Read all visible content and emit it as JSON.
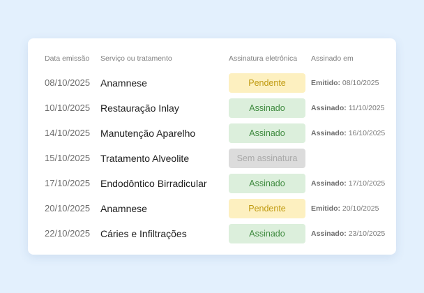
{
  "table": {
    "headers": {
      "date": "Data emissão",
      "service": "Serviço ou tratamento",
      "signature": "Assinatura eletrônica",
      "signed_at": "Assinado em"
    },
    "status_styles": {
      "Pendente": {
        "bg": "#fdf0c0",
        "fg": "#c09a10"
      },
      "Assinado": {
        "bg": "#dcefdc",
        "fg": "#3e8a3e"
      },
      "Sem assinatura": {
        "bg": "#dcdcdc",
        "fg": "#a8a8a8"
      }
    },
    "rows": [
      {
        "date": "08/10/2025",
        "service": "Anamnese",
        "status": "Pendente",
        "at_label": "Emitido:",
        "at_date": "08/10/2025"
      },
      {
        "date": "10/10/2025",
        "service": "Restauração Inlay",
        "status": "Assinado",
        "at_label": "Assinado:",
        "at_date": "11/10/2025"
      },
      {
        "date": "14/10/2025",
        "service": "Manutenção Aparelho",
        "status": "Assinado",
        "at_label": "Assinado:",
        "at_date": "16/10/2025"
      },
      {
        "date": "15/10/2025",
        "service": "Tratamento Alveolite",
        "status": "Sem assinatura",
        "at_label": "",
        "at_date": ""
      },
      {
        "date": "17/10/2025",
        "service": "Endodôntico Birradicular",
        "status": "Assinado",
        "at_label": "Assinado:",
        "at_date": "17/10/2025"
      },
      {
        "date": "20/10/2025",
        "service": "Anamnese",
        "status": "Pendente",
        "at_label": "Emitido:",
        "at_date": "20/10/2025"
      },
      {
        "date": "22/10/2025",
        "service": "Cáries e Infiltrações",
        "status": "Assinado",
        "at_label": "Assinado:",
        "at_date": "23/10/2025"
      }
    ]
  }
}
